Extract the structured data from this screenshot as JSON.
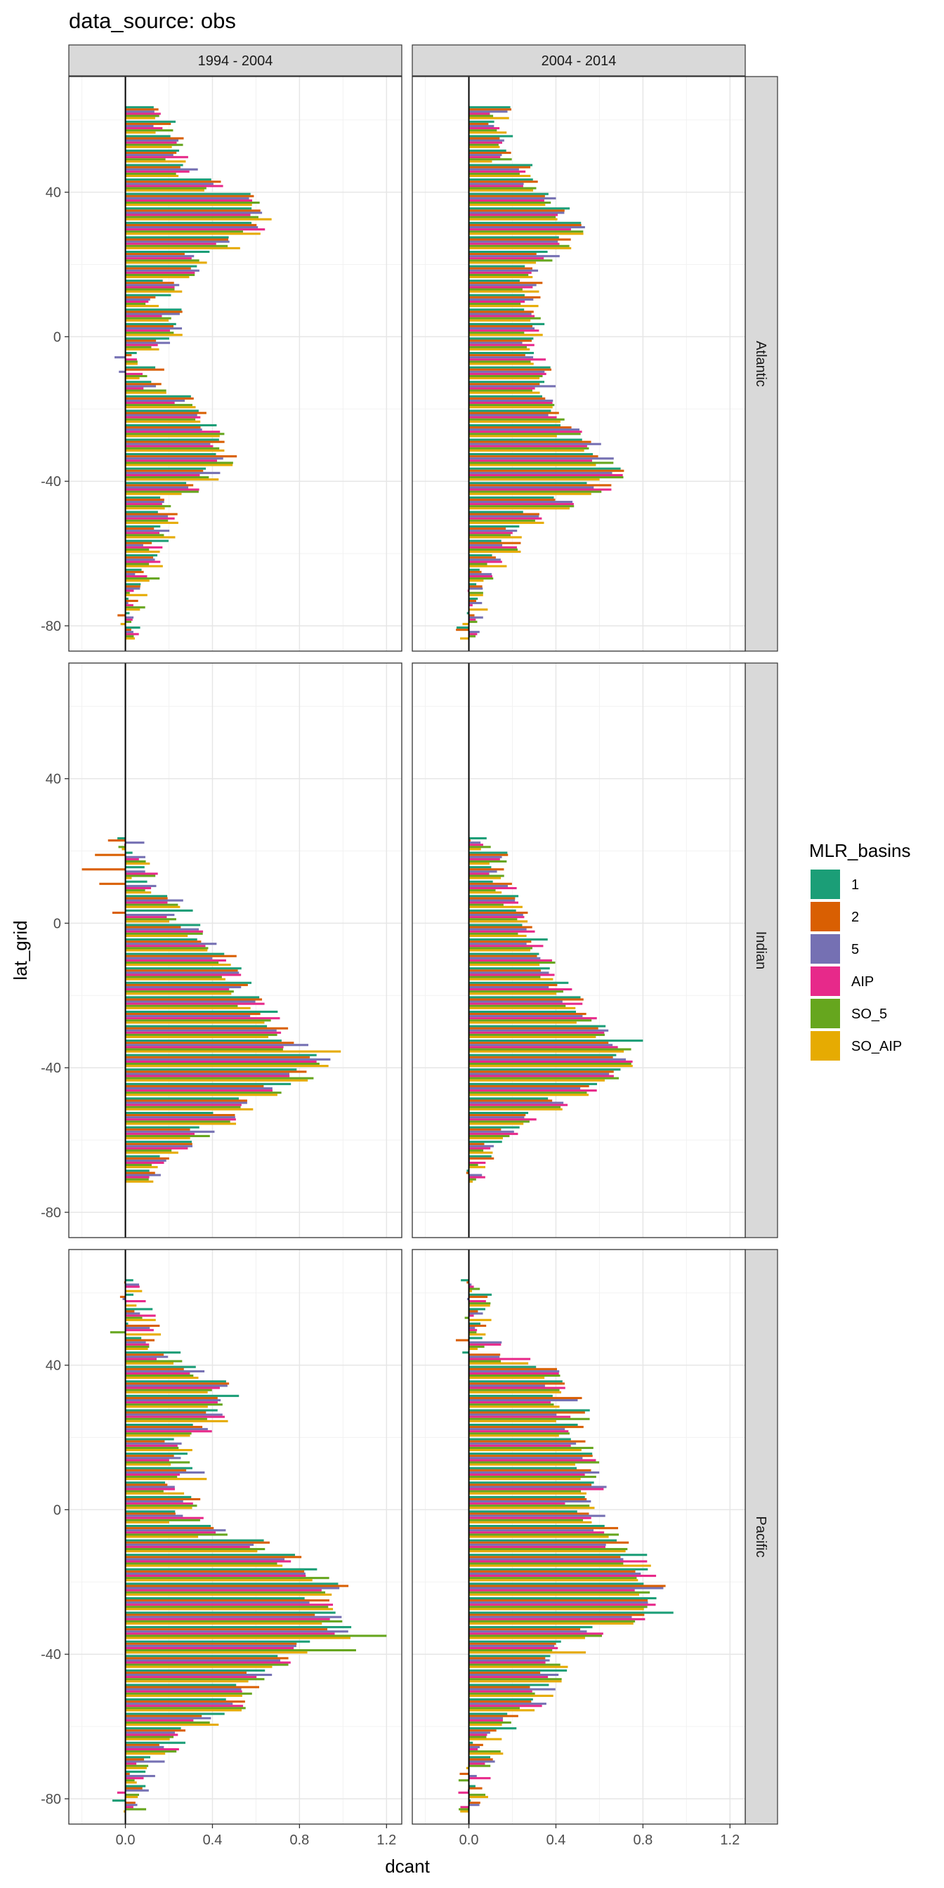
{
  "title": "data_source: obs",
  "chart_data": {
    "type": "bar",
    "orientation": "horizontal",
    "facets": {
      "columns": [
        "1994 - 2004",
        "2004 - 2014"
      ],
      "rows": [
        "Atlantic",
        "Indian",
        "Pacific"
      ]
    },
    "xlabel": "dcant",
    "ylabel": "lat_grid",
    "xlim": [
      -0.26,
      1.27
    ],
    "ylim": [
      -87,
      72
    ],
    "x_ticks": [
      "0.0",
      "0.4",
      "0.8",
      "1.2"
    ],
    "y_ticks": [
      "-80",
      "-40",
      "0",
      "40"
    ],
    "x_tick_values": [
      0,
      0.4,
      0.8,
      1.2
    ],
    "y_tick_values": [
      -80,
      -40,
      0,
      40
    ],
    "grid": true,
    "reference_line_x": 0,
    "legend": {
      "title": "MLR_basins",
      "position": "right",
      "entries": [
        {
          "label": "1",
          "color": "#1B9E77"
        },
        {
          "label": "2",
          "color": "#D95F02"
        },
        {
          "label": "5",
          "color": "#7570B3"
        },
        {
          "label": "AIP",
          "color": "#E7298A"
        },
        {
          "label": "SO_5",
          "color": "#66A61E"
        },
        {
          "label": "SO_AIP",
          "color": "#E6AB02"
        }
      ]
    },
    "lat_grid": [
      62,
      58,
      54,
      50,
      46,
      42,
      38,
      34,
      30,
      26,
      22,
      18,
      14,
      10,
      6,
      2,
      -2,
      -6,
      -10,
      -14,
      -18,
      -22,
      -26,
      -30,
      -34,
      -38,
      -42,
      -46,
      -50,
      -54,
      -58,
      -62,
      -66,
      -70,
      -74,
      -78,
      -82
    ],
    "panels": [
      {
        "basin": "Atlantic",
        "period": "1994 - 2004",
        "lat_range": [
          62,
          -82
        ],
        "profile": [
          0.19,
          0.18,
          0.26,
          0.24,
          0.28,
          0.4,
          0.56,
          0.62,
          0.6,
          0.47,
          0.33,
          0.29,
          0.21,
          0.15,
          0.22,
          0.24,
          0.15,
          0.06,
          0.12,
          0.14,
          0.27,
          0.33,
          0.4,
          0.44,
          0.46,
          0.39,
          0.28,
          0.22,
          0.19,
          0.17,
          0.14,
          0.12,
          0.1,
          0.08,
          0.05,
          0.01,
          0.01
        ],
        "spread": 0.06
      },
      {
        "basin": "Atlantic",
        "period": "2004 - 2014",
        "lat_range": [
          62,
          -82
        ],
        "profile": [
          0.14,
          0.12,
          0.17,
          0.16,
          0.24,
          0.3,
          0.4,
          0.44,
          0.48,
          0.44,
          0.36,
          0.3,
          0.28,
          0.28,
          0.3,
          0.31,
          0.29,
          0.31,
          0.33,
          0.35,
          0.37,
          0.4,
          0.46,
          0.56,
          0.62,
          0.66,
          0.6,
          0.44,
          0.3,
          0.22,
          0.18,
          0.12,
          0.07,
          0.05,
          0.04,
          0.03,
          0.0
        ],
        "spread": 0.06
      },
      {
        "basin": "Indian",
        "period": "1994 - 2004",
        "lat_range": [
          22,
          -70
        ],
        "profile": [
          0.02,
          0.05,
          0.09,
          0.12,
          0.2,
          0.25,
          0.3,
          0.38,
          0.45,
          0.5,
          0.54,
          0.58,
          0.64,
          0.7,
          0.78,
          0.88,
          0.82,
          0.7,
          0.58,
          0.45,
          0.34,
          0.25,
          0.18,
          0.1
        ],
        "spread": 0.07
      },
      {
        "basin": "Indian",
        "period": "2004 - 2014",
        "lat_range": [
          22,
          -70
        ],
        "profile": [
          0.05,
          0.12,
          0.15,
          0.17,
          0.2,
          0.24,
          0.28,
          0.31,
          0.35,
          0.38,
          0.42,
          0.48,
          0.55,
          0.62,
          0.7,
          0.72,
          0.66,
          0.55,
          0.4,
          0.28,
          0.2,
          0.12,
          0.06,
          0.04
        ],
        "spread": 0.06
      },
      {
        "basin": "Pacific",
        "period": "1994 - 2004",
        "lat_range": [
          62,
          -82
        ],
        "profile": [
          0.02,
          0.04,
          0.06,
          0.09,
          0.14,
          0.22,
          0.32,
          0.4,
          0.45,
          0.42,
          0.35,
          0.25,
          0.22,
          0.3,
          0.25,
          0.3,
          0.28,
          0.4,
          0.6,
          0.74,
          0.88,
          0.95,
          0.9,
          0.93,
          0.98,
          0.8,
          0.7,
          0.62,
          0.56,
          0.48,
          0.38,
          0.28,
          0.2,
          0.12,
          0.06,
          0.04,
          0.02
        ],
        "spread": 0.08
      },
      {
        "basin": "Pacific",
        "period": "2004 - 2014",
        "lat_range": [
          62,
          -82
        ],
        "profile": [
          0.03,
          0.04,
          0.04,
          0.06,
          0.12,
          0.22,
          0.36,
          0.42,
          0.45,
          0.48,
          0.48,
          0.5,
          0.52,
          0.55,
          0.58,
          0.52,
          0.55,
          0.62,
          0.7,
          0.76,
          0.8,
          0.84,
          0.8,
          0.74,
          0.58,
          0.46,
          0.42,
          0.4,
          0.32,
          0.28,
          0.22,
          0.14,
          0.08,
          0.04,
          0.02,
          0.01,
          0.01
        ],
        "spread": 0.08
      }
    ],
    "notable_bars": [
      {
        "basin": "Atlantic",
        "period": "1994 - 2004",
        "lat": -6,
        "series": "5",
        "value": -0.05
      },
      {
        "basin": "Atlantic",
        "period": "1994 - 2004",
        "lat": -10,
        "series": "5",
        "value": -0.03
      },
      {
        "basin": "Indian",
        "period": "1994 - 2004",
        "lat": 22,
        "series": "2",
        "value": -0.08
      },
      {
        "basin": "Indian",
        "period": "1994 - 2004",
        "lat": 18,
        "series": "2",
        "value": -0.14
      },
      {
        "basin": "Indian",
        "period": "1994 - 2004",
        "lat": 14,
        "series": "2",
        "value": -0.2
      },
      {
        "basin": "Indian",
        "period": "1994 - 2004",
        "lat": 10,
        "series": "2",
        "value": -0.12
      },
      {
        "basin": "Indian",
        "period": "1994 - 2004",
        "lat": 2,
        "series": "2",
        "value": -0.06
      },
      {
        "basin": "Pacific",
        "period": "1994 - 2004",
        "lat": 50,
        "series": "SO_5",
        "value": -0.07
      },
      {
        "basin": "Pacific",
        "period": "2004 - 2014",
        "lat": 46,
        "series": "2",
        "value": -0.06
      },
      {
        "basin": "Pacific",
        "period": "2004 - 2014",
        "lat": 42,
        "series": "1",
        "value": -0.03
      },
      {
        "basin": "Pacific",
        "period": "1994 - 2004",
        "lat": -34,
        "series": "SO_5",
        "value": 1.2
      },
      {
        "basin": "Pacific",
        "period": "1994 - 2004",
        "lat": -38,
        "series": "SO_5",
        "value": 1.06
      },
      {
        "basin": "Indian",
        "period": "1994 - 2004",
        "lat": -34,
        "series": "SO_AIP",
        "value": 0.99
      },
      {
        "basin": "Indian",
        "period": "2004 - 2014",
        "lat": -34,
        "series": "1",
        "value": 0.8
      },
      {
        "basin": "Pacific",
        "period": "2004 - 2014",
        "lat": -30,
        "series": "1",
        "value": 0.94
      },
      {
        "basin": "Atlantic",
        "period": "2004 - 2014",
        "lat": -38,
        "series": "SO_5",
        "value": 0.71
      }
    ]
  }
}
